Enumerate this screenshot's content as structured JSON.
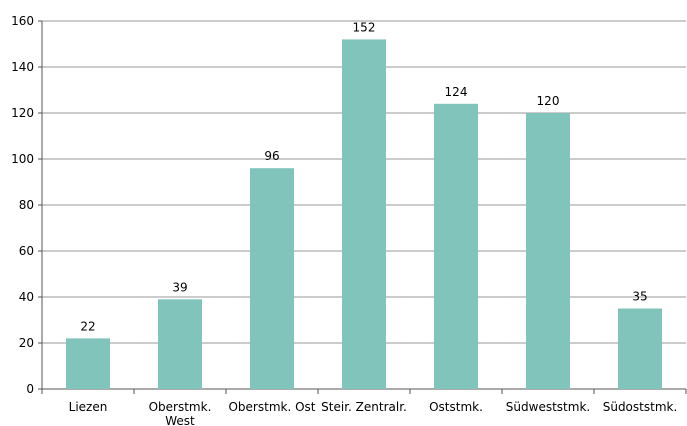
{
  "chart_data": {
    "type": "bar",
    "categories": [
      "Liezen",
      "Oberstmk. West",
      "Oberstmk. Ost",
      "Steir. Zentralr.",
      "Oststmk.",
      "Südweststmk.",
      "Südoststmk."
    ],
    "values": [
      22,
      39,
      96,
      152,
      124,
      120,
      35
    ],
    "color": "#80c4bb",
    "ylim": [
      0,
      160
    ],
    "yticks": [
      0,
      20,
      40,
      60,
      80,
      100,
      120,
      140,
      160
    ],
    "grid": true
  }
}
